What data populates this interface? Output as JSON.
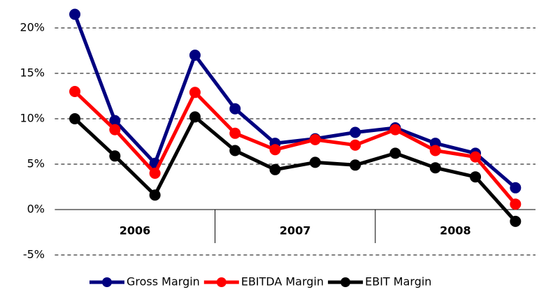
{
  "chart_data": {
    "type": "line",
    "categories": [
      null,
      null,
      null,
      null,
      null,
      null,
      null,
      null,
      null,
      null,
      null,
      null
    ],
    "x_groups": [
      "2006",
      "2007",
      "2008"
    ],
    "series": [
      {
        "name": "Gross Margin",
        "color": "#000080",
        "values": [
          21.5,
          9.8,
          5.1,
          17.0,
          11.1,
          7.3,
          7.8,
          8.5,
          9.0,
          7.3,
          6.2,
          2.4
        ]
      },
      {
        "name": "EBITDA Margin",
        "color": "#ff0000",
        "values": [
          13.0,
          8.8,
          4.0,
          12.9,
          8.4,
          6.6,
          7.7,
          7.1,
          8.8,
          6.5,
          5.8,
          0.6
        ]
      },
      {
        "name": "EBIT Margin",
        "color": "#000000",
        "values": [
          10.0,
          5.9,
          1.6,
          10.2,
          6.5,
          4.4,
          5.2,
          4.9,
          6.2,
          4.6,
          3.6,
          -1.3
        ]
      }
    ],
    "ylim": [
      -5,
      22.5
    ],
    "yticks": [
      {
        "value": -5,
        "label": "-5%"
      },
      {
        "value": 0,
        "label": "0%"
      },
      {
        "value": 5,
        "label": "5%"
      },
      {
        "value": 10,
        "label": "10%"
      },
      {
        "value": 15,
        "label": "15%"
      },
      {
        "value": 20,
        "label": "20%"
      }
    ],
    "grid": true,
    "legend": "bottom"
  }
}
